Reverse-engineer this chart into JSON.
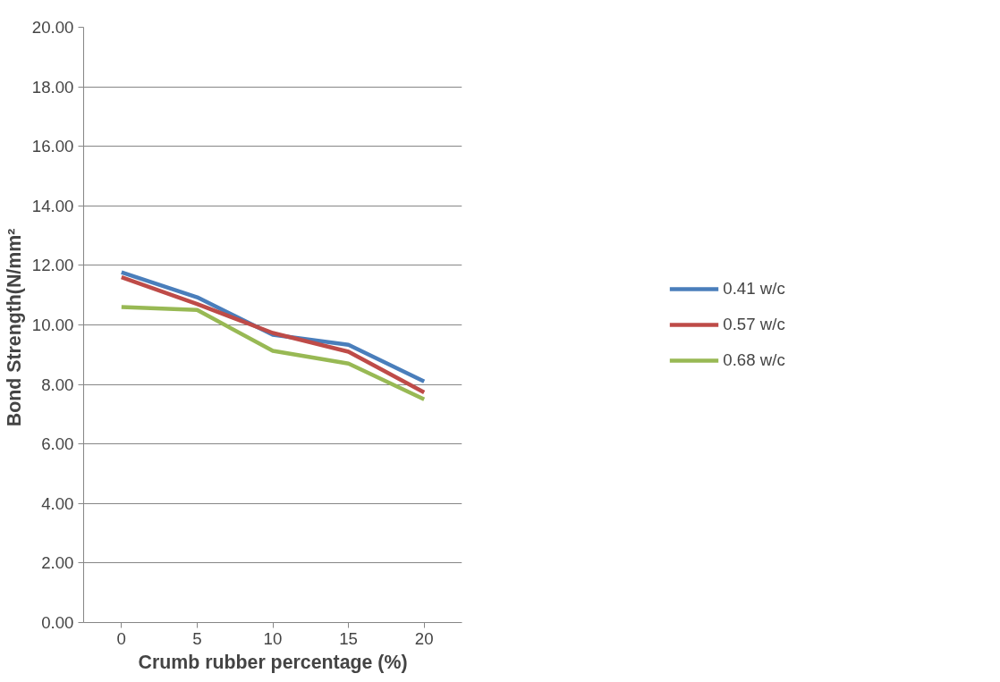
{
  "chart_data": {
    "type": "line",
    "xlabel": "Crumb rubber percentage (%)",
    "ylabel": "Bond  Strength(N/mm²",
    "categories": [
      "0",
      "5",
      "10",
      "15",
      "20"
    ],
    "series": [
      {
        "name": "0.41 w/c",
        "color": "#4a7ebb",
        "values": [
          11.77,
          10.93,
          9.67,
          9.33,
          8.1
        ]
      },
      {
        "name": "0.57 w/c",
        "color": "#be4b48",
        "values": [
          11.6,
          10.7,
          9.73,
          9.1,
          7.73
        ]
      },
      {
        "name": "0.68 w/c",
        "color": "#98b954",
        "values": [
          10.6,
          10.5,
          9.13,
          8.7,
          7.5
        ]
      }
    ],
    "ylim": [
      0,
      20
    ],
    "yticks": [
      {
        "value": 0,
        "label": "0.00"
      },
      {
        "value": 2,
        "label": "2.00"
      },
      {
        "value": 4,
        "label": "4.00"
      },
      {
        "value": 6,
        "label": "6.00"
      },
      {
        "value": 8,
        "label": "8.00"
      },
      {
        "value": 10,
        "label": "10.00"
      },
      {
        "value": 12,
        "label": "12.00"
      },
      {
        "value": 14,
        "label": "14.00"
      },
      {
        "value": 16,
        "label": "16.00"
      },
      {
        "value": 18,
        "label": "18.00"
      },
      {
        "value": 20,
        "label": "20.00"
      }
    ],
    "grid": "y",
    "legend": "right",
    "marker": "none",
    "line_style": "solid"
  }
}
